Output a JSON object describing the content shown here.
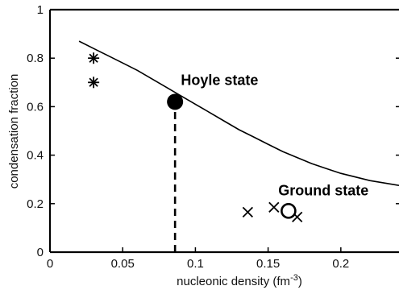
{
  "chart_data": {
    "type": "scatter",
    "xlabel": "nucleonic density (fm",
    "xlabel_sup": "-3",
    "xlabel_end": ")",
    "ylabel": "condensation fraction",
    "xlim": [
      0,
      0.24
    ],
    "ylim": [
      0,
      1
    ],
    "x_ticks": [
      {
        "value": 0,
        "label": "0"
      },
      {
        "value": 0.05,
        "label": "0.05"
      },
      {
        "value": 0.1,
        "label": "0.1"
      },
      {
        "value": 0.15,
        "label": "0.15"
      },
      {
        "value": 0.2,
        "label": "0.2"
      }
    ],
    "y_ticks": [
      {
        "value": 0,
        "label": "0"
      },
      {
        "value": 0.2,
        "label": "0.2"
      },
      {
        "value": 0.4,
        "label": "0.4"
      },
      {
        "value": 0.6,
        "label": "0.6"
      },
      {
        "value": 0.8,
        "label": "0.8"
      },
      {
        "value": 1,
        "label": "1"
      }
    ],
    "grid": false,
    "series": [
      {
        "marker": "line",
        "color": "#000000",
        "x": [
          0.02,
          0.03,
          0.04,
          0.05,
          0.06,
          0.07,
          0.08,
          0.09,
          0.1,
          0.11,
          0.12,
          0.13,
          0.14,
          0.15,
          0.16,
          0.17,
          0.18,
          0.19,
          0.2,
          0.21,
          0.22,
          0.23,
          0.24
        ],
        "y": [
          0.87,
          0.84,
          0.81,
          0.78,
          0.75,
          0.715,
          0.68,
          0.645,
          0.61,
          0.575,
          0.54,
          0.505,
          0.475,
          0.445,
          0.415,
          0.39,
          0.365,
          0.345,
          0.325,
          0.31,
          0.295,
          0.285,
          0.275
        ]
      },
      {
        "marker": "asterisk",
        "color": "#000000",
        "x": [
          0.03,
          0.03
        ],
        "y": [
          0.8,
          0.7
        ]
      },
      {
        "marker": "filled-circle",
        "color": "#000000",
        "x": [
          0.086
        ],
        "y": [
          0.62
        ]
      },
      {
        "marker": "cross",
        "color": "#000000",
        "x": [
          0.136,
          0.154,
          0.17
        ],
        "y": [
          0.165,
          0.185,
          0.145
        ]
      },
      {
        "marker": "open-circle",
        "color": "#000000",
        "x": [
          0.164
        ],
        "y": [
          0.17
        ]
      }
    ],
    "reference_line": {
      "x": 0.086,
      "y_from": 0,
      "y_to": 0.6,
      "style": "dashed"
    },
    "annotations": [
      {
        "text": "Hoyle state",
        "x": 0.09,
        "y": 0.69
      },
      {
        "text": "Ground state",
        "x": 0.157,
        "y": 0.235
      }
    ]
  }
}
